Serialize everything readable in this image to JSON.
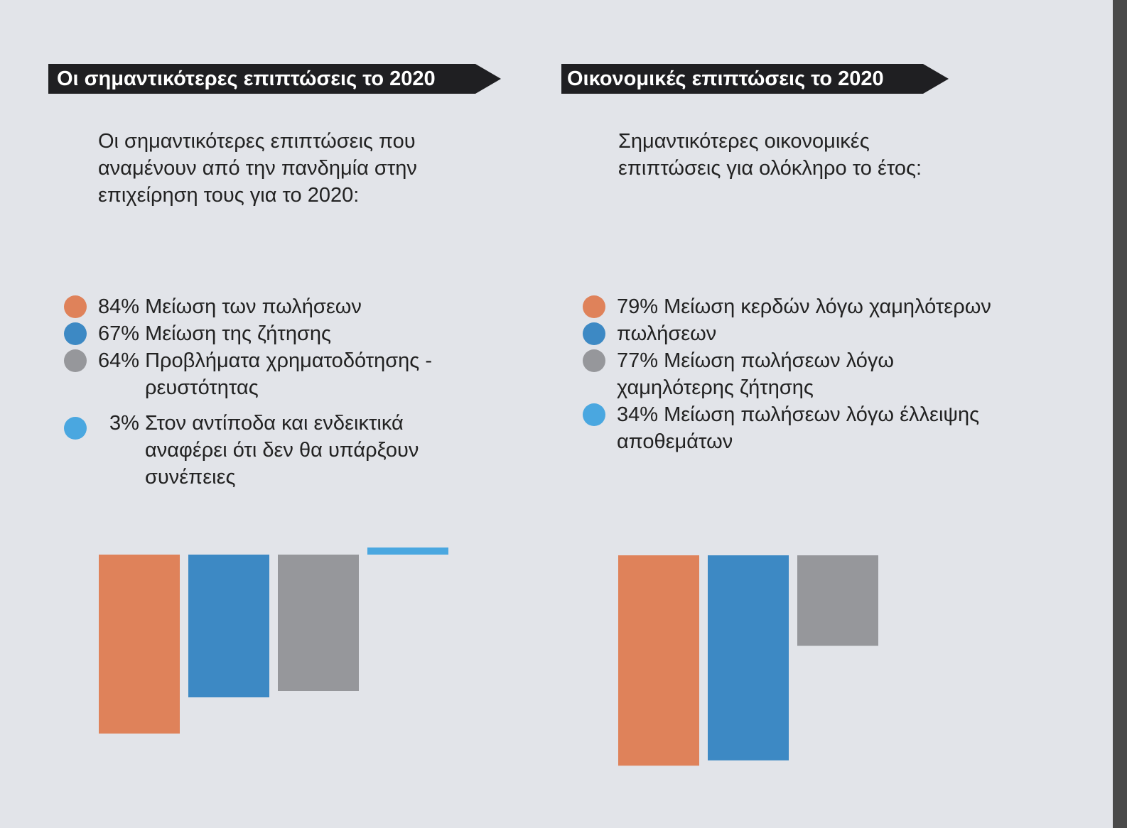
{
  "colors": {
    "orange": "#df825a",
    "blue": "#3d89c4",
    "gray": "#96979b",
    "light_blue": "#4aa7e0"
  },
  "left": {
    "banner": "Οι σημαντικότερες επιπτώσεις το 2020",
    "subtitle_lines": [
      "Οι σημαντικότερες επιπτώσεις που",
      "αναμένουν από την πανδημία στην",
      "επιχείρηση τους για το 2020:"
    ],
    "legend": [
      {
        "text": "84% Μείωση των πωλήσεων",
        "cont": "",
        "color": "orange"
      },
      {
        "text": "67% Μείωση της ζήτησης",
        "cont": "",
        "color": "blue"
      },
      {
        "text": "64% Προβλήματα χρηματοδότησης -",
        "cont": "ρευστότητας",
        "color": "gray"
      },
      {
        "text": "3% Στον αντίποδα και ενδεικτικά",
        "cont": "αναφέρει ότι δεν θα υπάρξουν",
        "cont2": "συνέπειες",
        "color": "light_blue"
      }
    ]
  },
  "right": {
    "banner": "Οικονομικές επιπτώσεις το 2020",
    "subtitle_lines": [
      "Σημαντικότερες οικονομικές",
      "επιπτώσεις για ολόκληρο το έτος:"
    ],
    "legend": [
      {
        "text": "79% Μείωση κερδών λόγω χαμηλότερων",
        "color": "orange"
      },
      {
        "text": "πωλήσεων",
        "color": "blue"
      },
      {
        "text": "77% Μείωση πωλήσεων λόγω",
        "color": "gray"
      },
      {
        "text": "χαμηλότερης ζήτησης",
        "color": ""
      },
      {
        "text": "34% Μείωση πωλήσεων λόγω έλλειψης",
        "color": "light_blue"
      },
      {
        "text": "αποθεμάτων",
        "color": ""
      }
    ]
  },
  "chart_data": [
    {
      "type": "bar",
      "categories": [
        "Μείωση των πωλήσεων",
        "Μείωση της ζήτησης",
        "Προβλήματα χρηματοδότησης - ρευστότητας",
        "Στον αντίποδα και ενδεικτικά αναφέρει ότι δεν θα υπάρξουν συνέπειες"
      ],
      "values": [
        84,
        67,
        64,
        3
      ],
      "unit": "%",
      "colors": [
        "orange",
        "blue",
        "gray",
        "light_blue"
      ],
      "orientation": "bars hang downward from a common baseline",
      "grid": false,
      "legend": "above chart, dot list"
    },
    {
      "type": "bar",
      "categories": [
        "Μείωση κερδών λόγω χαμηλότερων πωλήσεων",
        "Μείωση πωλήσεων λόγω χαμηλότερης ζήτησης",
        "Μείωση πωλήσεων λόγω έλλειψης αποθεμάτων"
      ],
      "values": [
        79,
        77,
        34
      ],
      "unit": "%",
      "colors": [
        "orange",
        "blue",
        "gray"
      ],
      "orientation": "bars hang downward from a common baseline",
      "grid": false,
      "legend": "above chart, dot list"
    }
  ]
}
